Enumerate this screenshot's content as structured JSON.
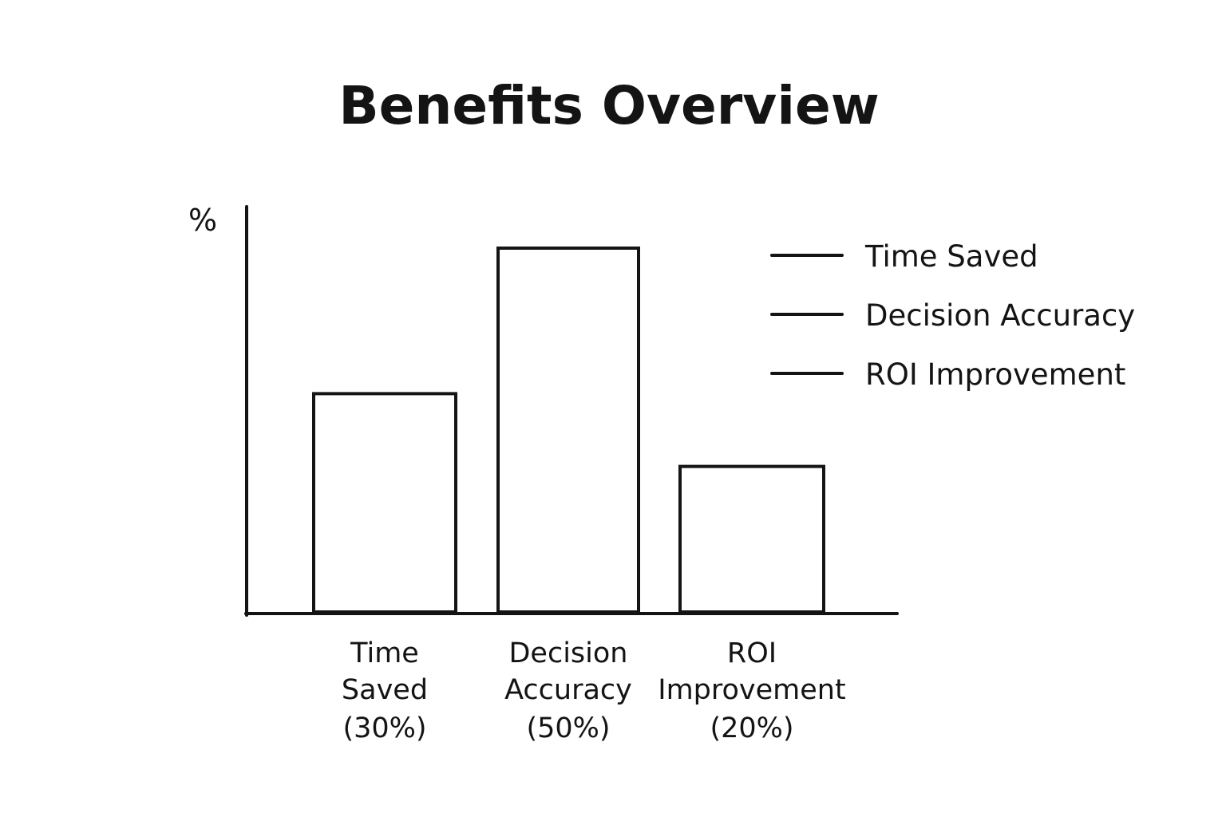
{
  "chart_data": {
    "type": "bar",
    "title": "Benefits Overview",
    "ylabel": "%",
    "xlabel": "",
    "categories": [
      "Time Saved",
      "Decision Accuracy",
      "ROI Improvement"
    ],
    "category_labels": [
      [
        "Time",
        "Saved",
        "(30%)"
      ],
      [
        "Decision",
        "Accuracy",
        "(50%)"
      ],
      [
        "ROI",
        "Improvement",
        "(20%)"
      ]
    ],
    "values": [
      30,
      50,
      20
    ],
    "legend": [
      "Time Saved",
      "Decision Accuracy",
      "ROI Improvement"
    ],
    "legend_position": "top-right",
    "grid": false,
    "colors": {
      "stroke": "#141414",
      "fill": "#ffffff"
    }
  }
}
